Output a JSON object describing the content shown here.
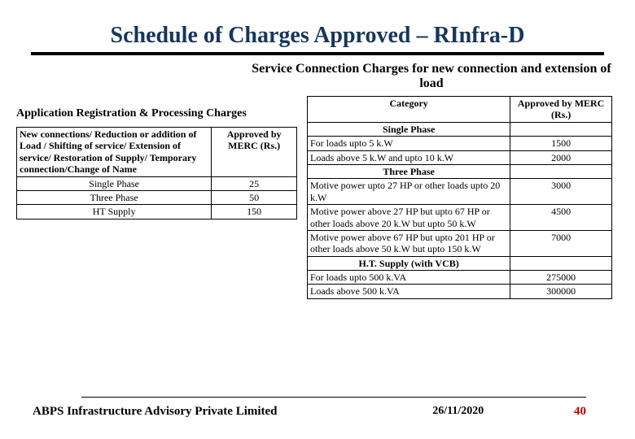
{
  "title": "Schedule of Charges Approved – RInfra-D",
  "subtitle": "Service Connection Charges for new connection and extension of load",
  "left": {
    "header": "Application Registration & Processing Charges",
    "col_desc": "New connections/ Reduction or addition of Load / Shifting of service/ Extension of service/ Restoration of Supply/ Temporary connection/Change of Name",
    "col_amt": "Approved by MERC (Rs.)",
    "rows": [
      {
        "label": "Single Phase",
        "value": "25"
      },
      {
        "label": "Three Phase",
        "value": "50"
      },
      {
        "label": "HT Supply",
        "value": "150"
      }
    ]
  },
  "right": {
    "col_cat": "Category",
    "col_amt": "Approved by MERC (Rs.)",
    "sections": {
      "single": "Single Phase",
      "three": "Three Phase",
      "ht": "H.T. Supply (with VCB)"
    },
    "single_rows": [
      {
        "label": "For loads upto 5 k.W",
        "value": "1500"
      },
      {
        "label": "Loads above 5 k.W and upto 10 k.W",
        "value": "2000"
      }
    ],
    "three_rows": [
      {
        "label": "Motive power upto 27 HP or other loads upto 20 k.W",
        "value": "3000"
      },
      {
        "label": "Motive power above 27 HP but upto 67 HP or other loads above 20 k.W but upto 50 k.W",
        "value": "4500"
      },
      {
        "label": "Motive power above 67 HP but upto 201 HP or other loads above 50 k.W but upto 150 k.W",
        "value": "7000"
      }
    ],
    "ht_rows": [
      {
        "label": "For loads upto 500 k.VA",
        "value": "275000"
      },
      {
        "label": "Loads above 500 k.VA",
        "value": "300000"
      }
    ]
  },
  "footer": {
    "org": "ABPS Infrastructure Advisory Private Limited",
    "date": "26/11/2020",
    "page": "40"
  },
  "colors": {
    "title_color": "#16365c",
    "page_color": "#c00000",
    "rule_color": "#000000",
    "background": "#ffffff"
  }
}
